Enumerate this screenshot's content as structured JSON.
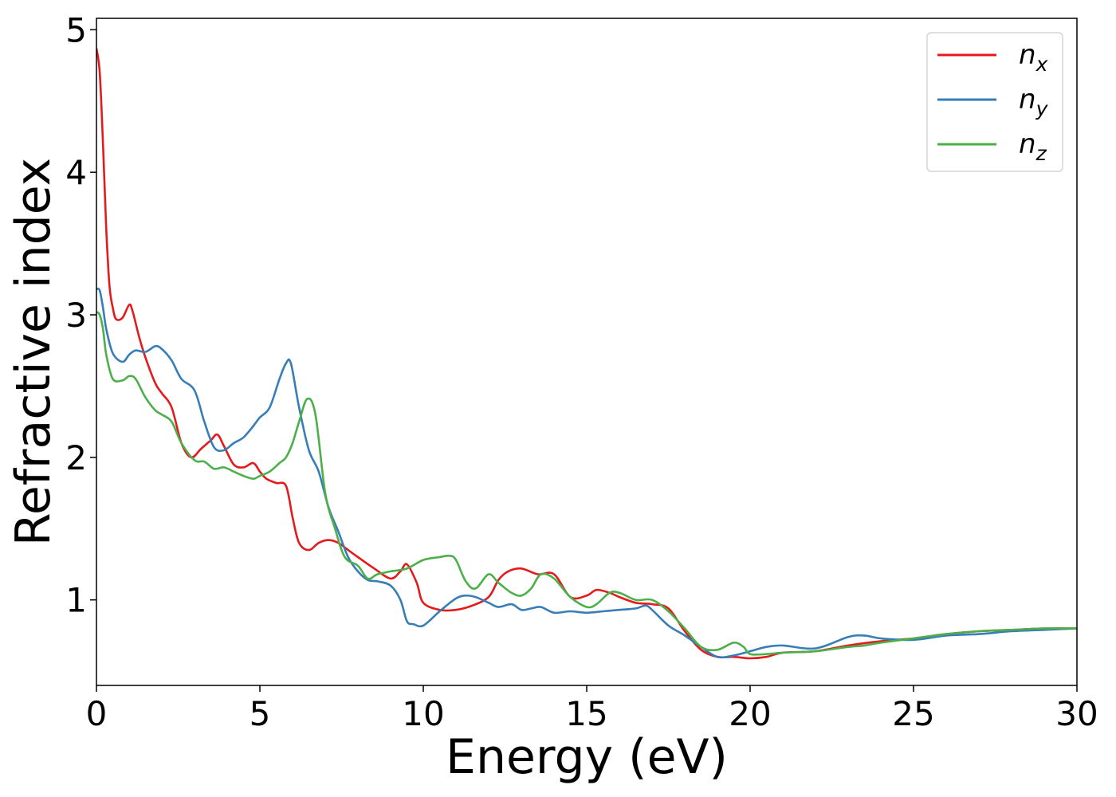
{
  "chart_data": {
    "type": "line",
    "xlabel": "Energy (eV)",
    "ylabel": "Refractive index",
    "xlim": [
      0,
      30
    ],
    "ylim": [
      0.4,
      5.08
    ],
    "xticks": [
      0,
      5,
      10,
      15,
      20,
      25,
      30
    ],
    "yticks": [
      1,
      2,
      3,
      4,
      5
    ],
    "grid": false,
    "legend_position": "top-right",
    "series": [
      {
        "name": "n_x",
        "legend_base": "n",
        "legend_sub": "x",
        "color": "#e41a1c",
        "x": [
          0,
          0.1,
          0.2,
          0.3,
          0.4,
          0.5,
          0.6,
          0.8,
          1.0,
          1.1,
          1.3,
          1.5,
          1.8,
          2.0,
          2.3,
          2.6,
          2.9,
          3.2,
          3.5,
          3.7,
          3.9,
          4.2,
          4.5,
          4.8,
          5.0,
          5.2,
          5.5,
          5.8,
          6.0,
          6.2,
          6.5,
          6.8,
          7.1,
          7.4,
          7.7,
          8.0,
          8.5,
          9.0,
          9.3,
          9.5,
          9.8,
          10.0,
          10.5,
          11.0,
          11.5,
          12.0,
          12.3,
          12.6,
          13.0,
          13.5,
          14.0,
          14.5,
          15.0,
          15.3,
          15.7,
          16.0,
          16.5,
          17.0,
          17.5,
          18.0,
          18.5,
          19.0,
          19.5,
          20.0,
          20.5,
          21.0,
          22.0,
          23.0,
          24.0,
          25.0,
          26.0,
          27.0,
          28.0,
          29.0,
          30.0
        ],
        "values": [
          4.87,
          4.7,
          4.2,
          3.6,
          3.2,
          3.05,
          2.97,
          2.98,
          3.07,
          3.03,
          2.85,
          2.7,
          2.52,
          2.45,
          2.35,
          2.1,
          2.0,
          2.06,
          2.12,
          2.16,
          2.08,
          1.95,
          1.93,
          1.96,
          1.9,
          1.85,
          1.82,
          1.8,
          1.58,
          1.4,
          1.35,
          1.4,
          1.42,
          1.4,
          1.35,
          1.3,
          1.22,
          1.15,
          1.2,
          1.25,
          1.12,
          0.98,
          0.93,
          0.93,
          0.96,
          1.02,
          1.14,
          1.2,
          1.22,
          1.18,
          1.18,
          1.02,
          1.03,
          1.07,
          1.05,
          1.02,
          0.98,
          0.97,
          0.94,
          0.78,
          0.65,
          0.6,
          0.6,
          0.59,
          0.6,
          0.63,
          0.64,
          0.68,
          0.71,
          0.73,
          0.76,
          0.78,
          0.79,
          0.8,
          0.8
        ]
      },
      {
        "name": "n_y",
        "legend_base": "n",
        "legend_sub": "y",
        "color": "#377eb8",
        "x": [
          0,
          0.1,
          0.2,
          0.3,
          0.5,
          0.8,
          1.0,
          1.2,
          1.5,
          1.8,
          2.0,
          2.3,
          2.6,
          3.0,
          3.3,
          3.6,
          3.9,
          4.2,
          4.5,
          4.8,
          5.0,
          5.3,
          5.6,
          5.8,
          5.95,
          6.2,
          6.5,
          6.8,
          7.1,
          7.4,
          7.7,
          8.0,
          8.3,
          8.6,
          9.0,
          9.3,
          9.5,
          9.7,
          10.0,
          10.5,
          11.0,
          11.3,
          11.6,
          12.0,
          12.3,
          12.7,
          13.0,
          13.3,
          13.6,
          14.0,
          14.5,
          15.0,
          15.5,
          16.0,
          16.5,
          16.8,
          17.0,
          17.5,
          18.0,
          18.5,
          19.0,
          19.5,
          20.0,
          20.5,
          21.0,
          22.0,
          23.0,
          23.5,
          24.0,
          25.0,
          26.0,
          27.0,
          28.0,
          29.0,
          30.0
        ],
        "values": [
          3.18,
          3.17,
          3.05,
          2.9,
          2.73,
          2.67,
          2.72,
          2.75,
          2.74,
          2.78,
          2.76,
          2.68,
          2.55,
          2.47,
          2.25,
          2.07,
          2.05,
          2.1,
          2.14,
          2.22,
          2.28,
          2.35,
          2.55,
          2.66,
          2.66,
          2.35,
          2.05,
          1.9,
          1.65,
          1.48,
          1.3,
          1.2,
          1.14,
          1.13,
          1.1,
          1.0,
          0.85,
          0.83,
          0.82,
          0.92,
          1.01,
          1.03,
          1.02,
          0.98,
          0.95,
          0.97,
          0.93,
          0.94,
          0.95,
          0.91,
          0.92,
          0.91,
          0.92,
          0.93,
          0.94,
          0.96,
          0.93,
          0.82,
          0.75,
          0.67,
          0.6,
          0.61,
          0.64,
          0.67,
          0.68,
          0.66,
          0.74,
          0.75,
          0.73,
          0.72,
          0.75,
          0.76,
          0.78,
          0.79,
          0.8
        ]
      },
      {
        "name": "n_z",
        "legend_base": "n",
        "legend_sub": "z",
        "color": "#4daf4a",
        "x": [
          0,
          0.1,
          0.2,
          0.3,
          0.5,
          0.8,
          1.0,
          1.2,
          1.5,
          1.8,
          2.0,
          2.3,
          2.6,
          3.0,
          3.3,
          3.6,
          3.9,
          4.2,
          4.5,
          4.8,
          5.0,
          5.3,
          5.6,
          5.8,
          6.0,
          6.2,
          6.45,
          6.7,
          7.0,
          7.3,
          7.6,
          8.0,
          8.3,
          8.6,
          9.0,
          9.5,
          10.0,
          10.5,
          10.8,
          11.0,
          11.3,
          11.6,
          12.0,
          12.3,
          12.7,
          13.0,
          13.3,
          13.6,
          14.0,
          14.5,
          15.0,
          15.3,
          15.7,
          16.0,
          16.5,
          17.0,
          17.5,
          18.0,
          18.5,
          19.0,
          19.5,
          19.8,
          20.0,
          20.5,
          21.0,
          22.0,
          23.0,
          23.5,
          24.0,
          25.0,
          26.0,
          27.0,
          28.0,
          29.0,
          30.0
        ],
        "values": [
          3.02,
          3.0,
          2.9,
          2.72,
          2.55,
          2.54,
          2.57,
          2.55,
          2.42,
          2.33,
          2.3,
          2.25,
          2.1,
          1.98,
          1.97,
          1.92,
          1.93,
          1.9,
          1.87,
          1.85,
          1.87,
          1.9,
          1.96,
          2.0,
          2.1,
          2.25,
          2.41,
          2.3,
          1.75,
          1.5,
          1.3,
          1.24,
          1.15,
          1.18,
          1.2,
          1.22,
          1.28,
          1.3,
          1.31,
          1.28,
          1.13,
          1.08,
          1.18,
          1.12,
          1.05,
          1.03,
          1.08,
          1.18,
          1.15,
          1.02,
          0.95,
          0.97,
          1.05,
          1.05,
          1.0,
          1.0,
          0.92,
          0.8,
          0.67,
          0.65,
          0.7,
          0.67,
          0.62,
          0.62,
          0.63,
          0.64,
          0.67,
          0.68,
          0.7,
          0.73,
          0.76,
          0.78,
          0.79,
          0.8,
          0.8
        ]
      }
    ]
  }
}
